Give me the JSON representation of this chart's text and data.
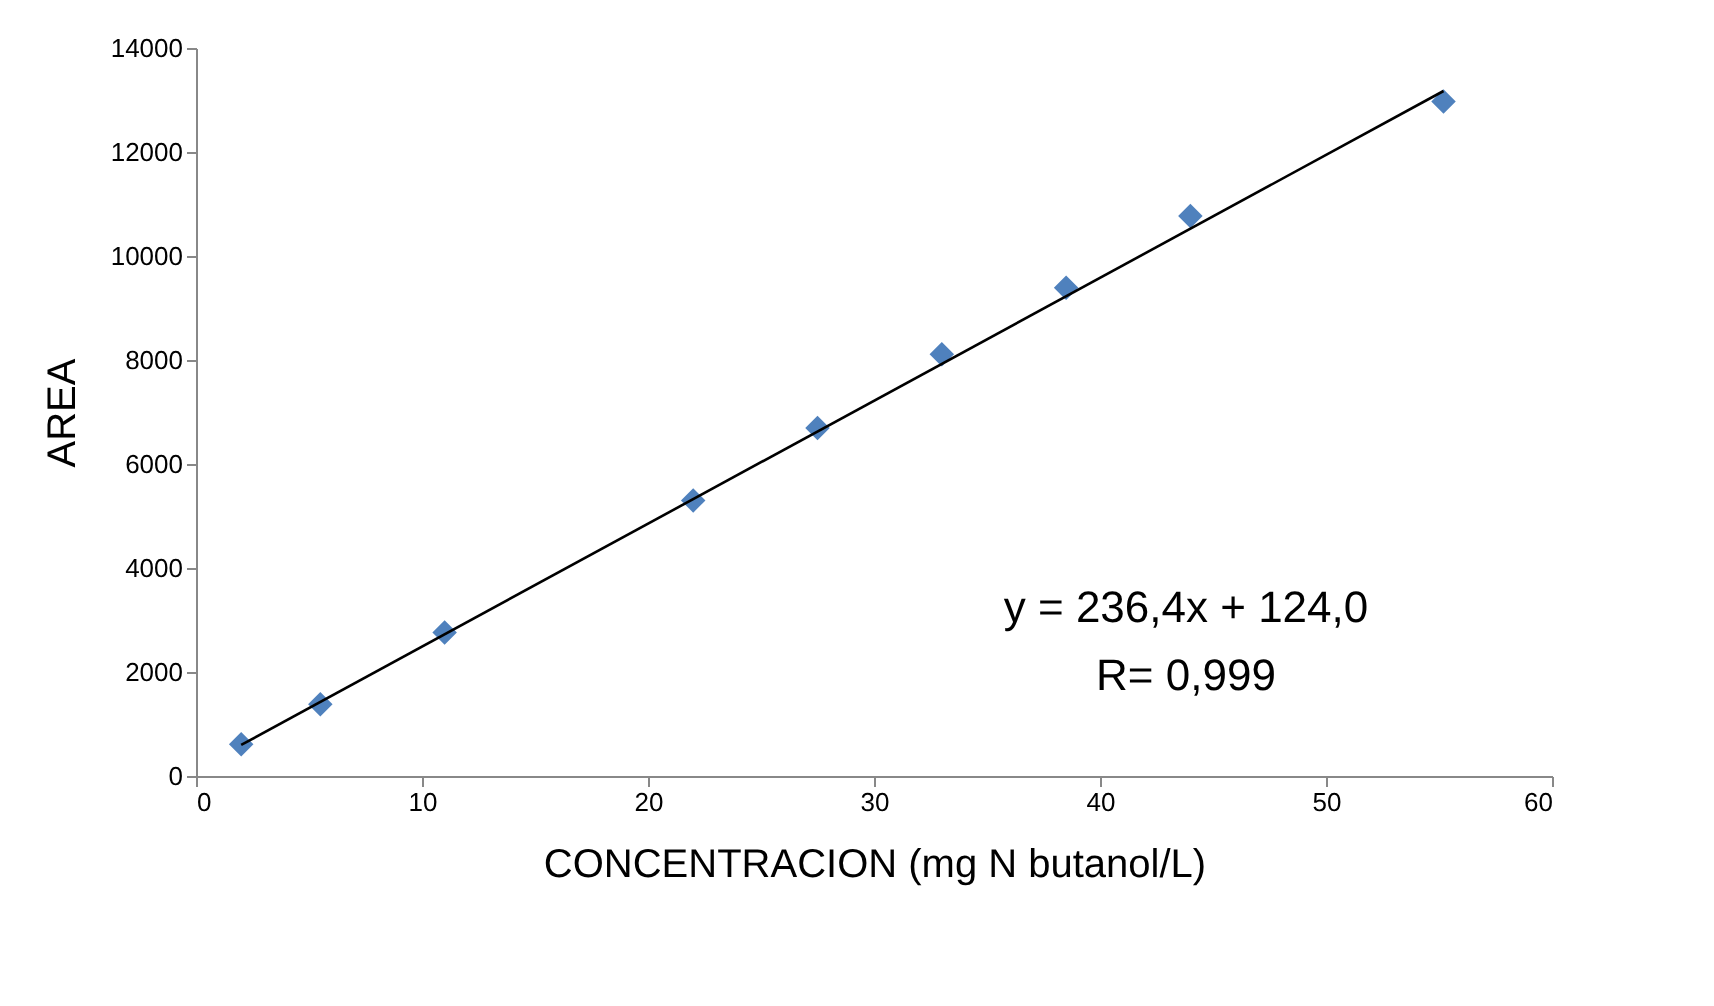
{
  "chart_data": {
    "type": "scatter",
    "xlabel": "CONCENTRACION (mg N butanol/L)",
    "ylabel": "AREA",
    "x": [
      2,
      5.5,
      11,
      22,
      27.5,
      33,
      38.5,
      44,
      55.2
    ],
    "series": [
      {
        "color": "#4f81bd",
        "marker": "diamond",
        "values": [
          610,
          1380,
          2760,
          5300,
          6690,
          8110,
          9390,
          10770,
          12970
        ]
      },
      {
        "type": "line",
        "color": "#000000",
        "x": [
          2,
          55.2
        ],
        "values": [
          597,
          13173
        ]
      }
    ],
    "xlim": [
      0,
      60
    ],
    "xticks": [
      0,
      10,
      20,
      30,
      40,
      50,
      60
    ],
    "ylim": [
      0,
      14000
    ],
    "yticks": [
      0,
      2000,
      4000,
      6000,
      8000,
      10000,
      12000,
      14000
    ],
    "grid": false,
    "annotations": [
      "y = 236,4x + 124,0",
      "R= 0,999"
    ]
  }
}
